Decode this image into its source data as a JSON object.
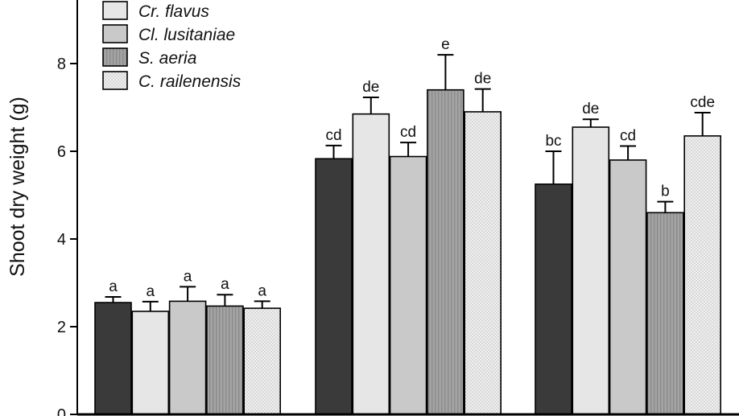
{
  "chart_data": {
    "type": "bar",
    "title": "",
    "xlabel": "",
    "ylabel": "Shoot dry weight (g)",
    "ylim": [
      0,
      9.4
    ],
    "yticks": [
      0,
      2,
      4,
      6,
      8
    ],
    "categories": [
      "",
      "",
      ""
    ],
    "series": [
      {
        "name": "",
        "color": "#3a3a3a",
        "pattern": "solid",
        "values": [
          2.55,
          5.83,
          5.25
        ],
        "errors": [
          0.13,
          0.3,
          0.75
        ],
        "labels": [
          "a",
          "cd",
          "bc"
        ]
      },
      {
        "name": "Cr. flavus",
        "color": "#e6e6e6",
        "pattern": "solid",
        "values": [
          2.35,
          6.85,
          6.55
        ],
        "errors": [
          0.22,
          0.38,
          0.18
        ],
        "labels": [
          "a",
          "de",
          "de"
        ]
      },
      {
        "name": "Cl. lusitaniae",
        "color": "#c9c9c9",
        "pattern": "solid",
        "values": [
          2.58,
          5.88,
          5.8
        ],
        "errors": [
          0.33,
          0.32,
          0.32
        ],
        "labels": [
          "a",
          "cd",
          "cd"
        ]
      },
      {
        "name": "S. aeria",
        "color": "#a4a4a4",
        "pattern": "vstripes",
        "values": [
          2.47,
          7.4,
          4.6
        ],
        "errors": [
          0.26,
          0.8,
          0.25
        ],
        "labels": [
          "a",
          "e",
          "b"
        ]
      },
      {
        "name": "C. railenensis",
        "color": "#ececec",
        "pattern": "dots",
        "values": [
          2.42,
          6.9,
          6.35
        ],
        "errors": [
          0.16,
          0.52,
          0.53
        ],
        "labels": [
          "a",
          "de",
          "cde"
        ]
      }
    ],
    "legend_position": "top-left",
    "grid": false
  }
}
